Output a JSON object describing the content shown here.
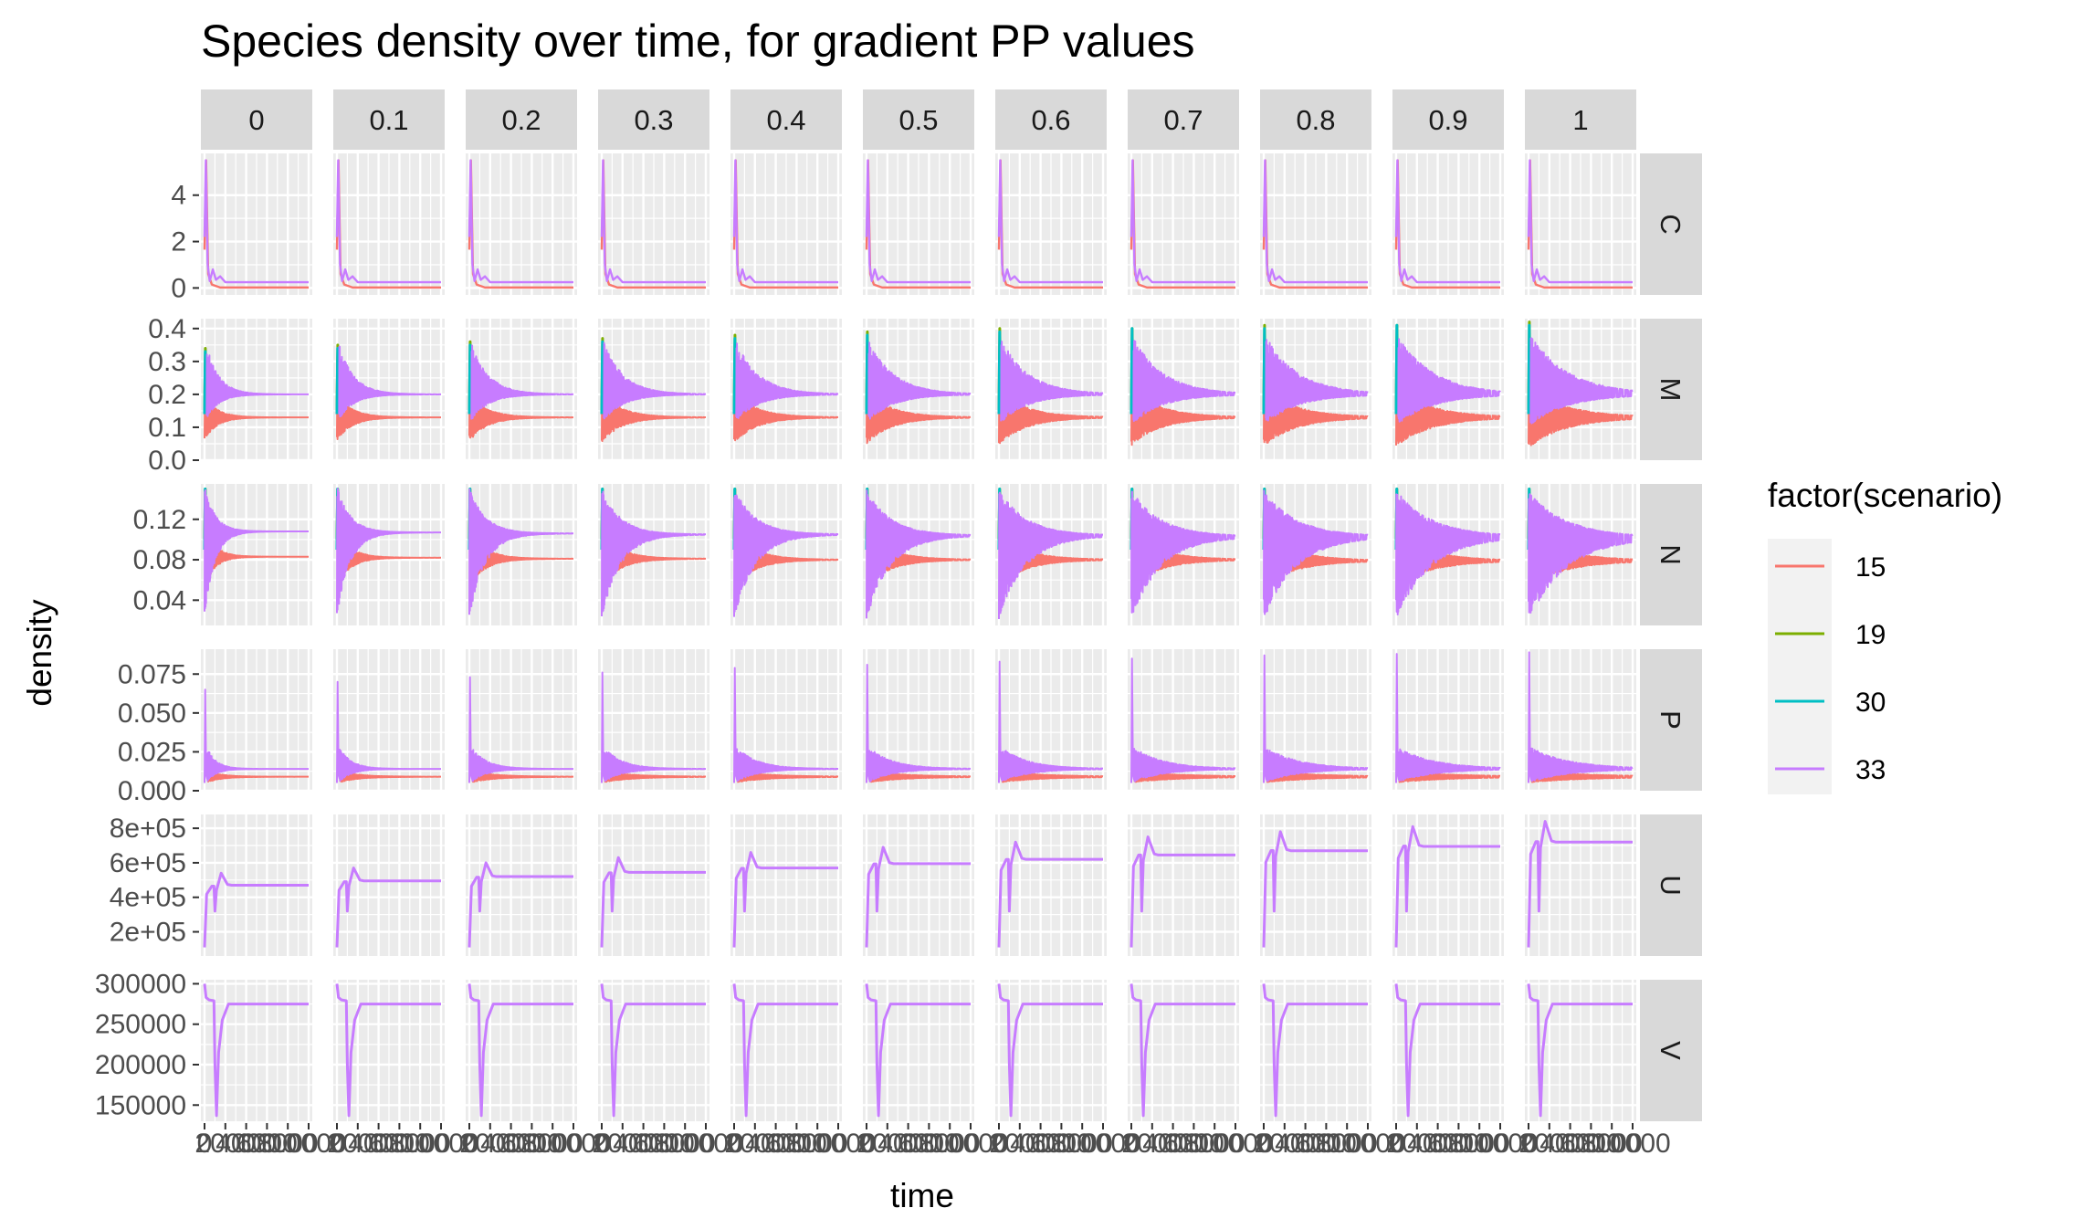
{
  "chart_data": {
    "type": "line",
    "title": "Species density over time, for gradient PP values",
    "xlabel": "time",
    "ylabel": "density",
    "facet_columns": [
      "0",
      "0.1",
      "0.2",
      "0.3",
      "0.4",
      "0.5",
      "0.6",
      "0.7",
      "0.8",
      "0.9",
      "1"
    ],
    "facet_rows": [
      "C",
      "M",
      "N",
      "P",
      "U",
      "V"
    ],
    "x_tick_labels": [
      "0",
      "2000",
      "4000",
      "6000",
      "8000",
      "10000"
    ],
    "xlim": [
      0,
      10000
    ],
    "grid": true,
    "legend": {
      "title": "factor(scenario)",
      "placement": "right",
      "entries": [
        {
          "label": "15",
          "color": "#F8766D"
        },
        {
          "label": "19",
          "color": "#7CAE00"
        },
        {
          "label": "30",
          "color": "#00BFC4"
        },
        {
          "label": "33",
          "color": "#C77CFF"
        }
      ]
    },
    "rows": [
      {
        "name": "C",
        "ylim": [
          -0.3,
          5.8
        ],
        "y_ticks": [
          0,
          2,
          4
        ],
        "y_tick_labels": [
          "0",
          "2",
          "4"
        ],
        "series": {
          "15": {
            "peak": 5.5,
            "final": 0.02
          },
          "33": {
            "peak": 5.5,
            "final": 0.25
          }
        }
      },
      {
        "name": "M",
        "ylim": [
          0,
          0.43
        ],
        "y_ticks": [
          0,
          0.1,
          0.2,
          0.3,
          0.4
        ],
        "y_tick_labels": [
          "0.0",
          "0.1",
          "0.2",
          "0.3",
          "0.4"
        ],
        "series": {
          "15": {
            "final": 0.13
          },
          "19": {
            "peak": [
              0.34,
              0.35,
              0.36,
              0.37,
              0.38,
              0.39,
              0.4,
              0.4,
              0.41,
              0.41,
              0.42
            ]
          },
          "30": {
            "peak": [
              0.33,
              0.34,
              0.35,
              0.36,
              0.37,
              0.38,
              0.39,
              0.4,
              0.4,
              0.41,
              0.41
            ]
          },
          "33": {
            "final": 0.2
          }
        }
      },
      {
        "name": "N",
        "ylim": [
          0.015,
          0.155
        ],
        "y_ticks": [
          0.04,
          0.08,
          0.12
        ],
        "y_tick_labels": [
          "0.04",
          "0.08",
          "0.12"
        ],
        "series": {
          "15": {
            "final": [
              0.083,
              0.082,
              0.081,
              0.081,
              0.08,
              0.08,
              0.08,
              0.08,
              0.079,
              0.079,
              0.079
            ]
          },
          "19": {
            "peak": 0.15
          },
          "30": {
            "peak": 0.15
          },
          "33": {
            "final": [
              0.108,
              0.107,
              0.106,
              0.105,
              0.105,
              0.104,
              0.104,
              0.103,
              0.103,
              0.103,
              0.102
            ]
          }
        }
      },
      {
        "name": "P",
        "ylim": [
          0,
          0.091
        ],
        "y_ticks": [
          0,
          0.025,
          0.05,
          0.075
        ],
        "y_tick_labels": [
          "0.000",
          "0.025",
          "0.050",
          "0.075"
        ],
        "series": {
          "15": {
            "final": 0.009
          },
          "33": {
            "peak": [
              0.065,
              0.07,
              0.073,
              0.076,
              0.079,
              0.081,
              0.083,
              0.085,
              0.087,
              0.088,
              0.089
            ],
            "final": 0.014
          }
        }
      },
      {
        "name": "U",
        "ylim": [
          60000,
          880000
        ],
        "y_ticks": [
          200000,
          400000,
          600000,
          800000
        ],
        "y_tick_labels": [
          "2e+05",
          "4e+05",
          "6e+05",
          "8e+05"
        ],
        "series": {
          "33": {
            "bump": [
              540000,
              570000,
              600000,
              630000,
              660000,
              690000,
              720000,
              750000,
              780000,
              810000,
              840000
            ],
            "final": [
              470000,
              495000,
              520000,
              545000,
              570000,
              595000,
              620000,
              645000,
              670000,
              695000,
              720000
            ]
          }
        }
      },
      {
        "name": "V",
        "ylim": [
          130000,
          305000
        ],
        "y_ticks": [
          150000,
          200000,
          250000,
          300000
        ],
        "y_tick_labels": [
          "150000",
          "200000",
          "250000",
          "300000"
        ],
        "series": {
          "33": {
            "start": 300000,
            "min": 137000,
            "final": 275000
          }
        }
      }
    ]
  }
}
